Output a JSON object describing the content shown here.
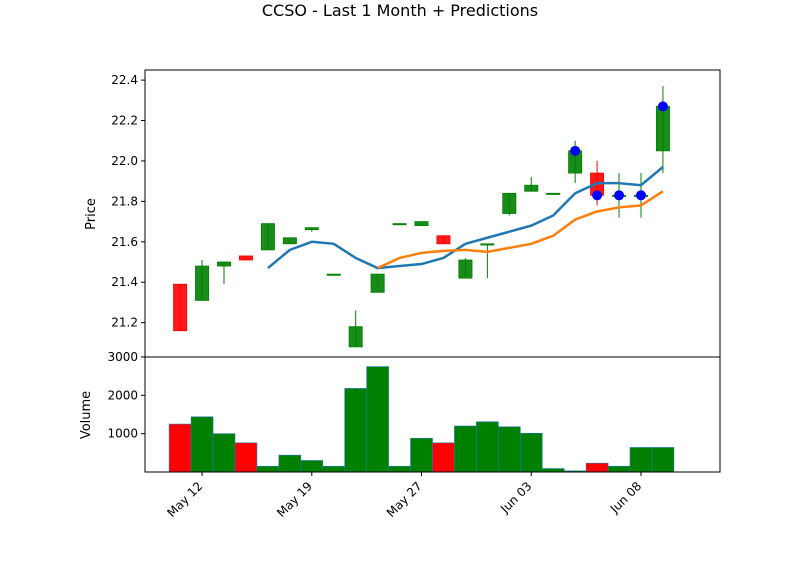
{
  "chart_data": {
    "type": "candlestick",
    "title": "CCSO - Last 1 Month + Predictions",
    "price_panel": {
      "ylabel": "Price",
      "ylim": [
        21.03,
        22.45
      ],
      "yticks": [
        21.2,
        21.4,
        21.6,
        21.8,
        22.0,
        22.2,
        22.4
      ],
      "ytick_labels": [
        "21.2",
        "21.4",
        "21.6",
        "21.8",
        "22.0",
        "22.2",
        "22.4"
      ]
    },
    "volume_panel": {
      "ylabel": "Volume",
      "ylim": [
        0,
        3000
      ],
      "yticks": [
        1000,
        2000,
        3000
      ],
      "ytick_labels": [
        "1000",
        "2000",
        "3000"
      ]
    },
    "xlim": [
      -1.6,
      24.6
    ],
    "xticks": [
      {
        "index": 1,
        "label": "May 12"
      },
      {
        "index": 6,
        "label": "May 19"
      },
      {
        "index": 11,
        "label": "May 27"
      },
      {
        "index": 16,
        "label": "Jun 03"
      },
      {
        "index": 21,
        "label": "Jun 08"
      }
    ],
    "colors": {
      "up": "#008000",
      "down": "#ff0000",
      "ma_short": "#1f77b4",
      "ma_long": "#ff7f0e",
      "prediction": "#0000ff"
    },
    "candles": [
      {
        "o": 21.39,
        "h": 21.39,
        "l": 21.16,
        "c": 21.16
      },
      {
        "o": 21.31,
        "h": 21.51,
        "l": 21.31,
        "c": 21.48
      },
      {
        "o": 21.48,
        "h": 21.5,
        "l": 21.39,
        "c": 21.5
      },
      {
        "o": 21.53,
        "h": 21.53,
        "l": 21.51,
        "c": 21.51
      },
      {
        "o": 21.56,
        "h": 21.69,
        "l": 21.56,
        "c": 21.69
      },
      {
        "o": 21.59,
        "h": 21.62,
        "l": 21.59,
        "c": 21.62
      },
      {
        "o": 21.66,
        "h": 21.67,
        "l": 21.65,
        "c": 21.67
      },
      {
        "o": 21.44,
        "h": 21.44,
        "l": 21.44,
        "c": 21.44
      },
      {
        "o": 21.08,
        "h": 21.26,
        "l": 21.08,
        "c": 21.18
      },
      {
        "o": 21.35,
        "h": 21.44,
        "l": 21.35,
        "c": 21.44
      },
      {
        "o": 21.69,
        "h": 21.69,
        "l": 21.69,
        "c": 21.69
      },
      {
        "o": 21.68,
        "h": 21.7,
        "l": 21.68,
        "c": 21.7
      },
      {
        "o": 21.63,
        "h": 21.63,
        "l": 21.59,
        "c": 21.59
      },
      {
        "o": 21.42,
        "h": 21.52,
        "l": 21.42,
        "c": 21.51
      },
      {
        "o": 21.59,
        "h": 21.59,
        "l": 21.42,
        "c": 21.59
      },
      {
        "o": 21.74,
        "h": 21.84,
        "l": 21.73,
        "c": 21.84
      },
      {
        "o": 21.85,
        "h": 21.92,
        "l": 21.85,
        "c": 21.88
      },
      {
        "o": 21.84,
        "h": 21.84,
        "l": 21.84,
        "c": 21.84
      },
      {
        "o": 21.94,
        "h": 22.1,
        "l": 21.89,
        "c": 22.05
      },
      {
        "o": 21.94,
        "h": 22.0,
        "l": 21.78,
        "c": 21.83
      },
      {
        "o": 21.83,
        "h": 21.94,
        "l": 21.72,
        "c": 21.83
      },
      {
        "o": 21.83,
        "h": 21.94,
        "l": 21.72,
        "c": 21.83
      },
      {
        "o": 22.05,
        "h": 22.37,
        "l": 21.94,
        "c": 22.27
      }
    ],
    "volumes": [
      1250,
      1440,
      1000,
      760,
      150,
      440,
      300,
      150,
      2180,
      2750,
      150,
      880,
      760,
      1200,
      1310,
      1180,
      1010,
      90,
      30,
      230,
      150,
      640,
      640
    ],
    "series": [
      {
        "values": [
          null,
          null,
          null,
          null,
          21.47,
          21.56,
          21.6,
          21.59,
          21.52,
          21.47,
          21.48,
          21.49,
          21.52,
          21.59,
          21.62,
          21.65,
          21.68,
          21.73,
          21.84,
          21.89,
          21.89,
          21.88,
          21.97
        ]
      },
      {
        "values": [
          null,
          null,
          null,
          null,
          null,
          null,
          null,
          null,
          null,
          21.47,
          21.52,
          21.545,
          21.555,
          21.56,
          21.55,
          21.57,
          21.59,
          21.63,
          21.71,
          21.75,
          21.77,
          21.78,
          21.85
        ]
      }
    ],
    "predictions": [
      {
        "index": 18,
        "value": 22.05
      },
      {
        "index": 19,
        "value": 21.83
      },
      {
        "index": 20,
        "value": 21.83
      },
      {
        "index": 21,
        "value": 21.83
      },
      {
        "index": 22,
        "value": 22.27
      }
    ]
  }
}
